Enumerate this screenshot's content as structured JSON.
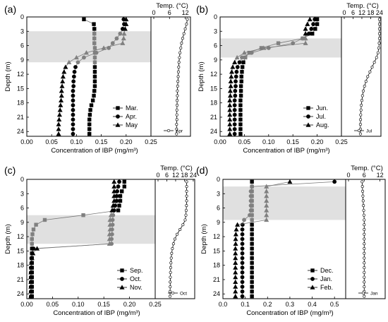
{
  "chart_data": [
    {
      "type": "line",
      "panel_label": "(a)",
      "ylabel": "Depth (m)",
      "xlabel": "Concentration of IBP (mg/m³)",
      "temp_title": "Temp. (°C)",
      "xlim": [
        0.0,
        0.25
      ],
      "xticks": [
        "0.00",
        "0.05",
        "0.10",
        "0.15",
        "0.20",
        "0.25"
      ],
      "temp_xlim": [
        0,
        14
      ],
      "temp_xticks": [
        "0",
        "6",
        "12"
      ],
      "ylim": [
        0,
        25
      ],
      "yticks": [
        "0",
        "3",
        "6",
        "9",
        "12",
        "15",
        "18",
        "21",
        "24"
      ],
      "shade": [
        3,
        9.5
      ],
      "depths": [
        0.5,
        1.5,
        2.5,
        3.5,
        4.5,
        5.5,
        6.5,
        7.5,
        8.5,
        9.5,
        10.5,
        11.5,
        12.5,
        13.5,
        14.5,
        15.5,
        16.5,
        17.5,
        18.5,
        19.5,
        20.5,
        21.5,
        22.5,
        23.5,
        24.5
      ],
      "series": [
        {
          "name": "Mar.",
          "marker": "square",
          "color": "#000000",
          "values": [
            0.115,
            0.135,
            0.136,
            0.136,
            0.136,
            0.136,
            0.137,
            0.137,
            0.137,
            0.137,
            0.137,
            0.137,
            0.137,
            0.137,
            0.137,
            0.136,
            0.135,
            0.133,
            0.13,
            0.128,
            0.127,
            0.126,
            0.126,
            0.126,
            0.126
          ]
        },
        {
          "name": "Apr.",
          "marker": "circle",
          "color": "#000000",
          "values": [
            0.195,
            0.196,
            0.193,
            0.188,
            0.181,
            0.173,
            0.165,
            0.14,
            0.115,
            0.103,
            0.098,
            0.096,
            0.095,
            0.094,
            0.094,
            0.093,
            0.093,
            0.093,
            0.093,
            0.093,
            0.093,
            0.093,
            0.093,
            0.093,
            0.093
          ]
        },
        {
          "name": "May",
          "marker": "triangle",
          "color": "#000000",
          "values": [
            0.2,
            0.2,
            0.198,
            0.196,
            0.195,
            0.193,
            0.155,
            0.12,
            0.1,
            0.085,
            0.078,
            0.075,
            0.073,
            0.072,
            0.071,
            0.07,
            0.07,
            0.069,
            0.068,
            0.067,
            0.066,
            0.065,
            0.064,
            0.064,
            0.064
          ]
        }
      ],
      "temp_label": "Apr",
      "temp": [
        12.8,
        12.5,
        12.0,
        11.5,
        11.0,
        10.6,
        10.3,
        10.0,
        9.8,
        9.6,
        9.5,
        9.4,
        9.3,
        9.2,
        9.1,
        9.0,
        9.0,
        8.9,
        8.9,
        8.8,
        8.8,
        8.8,
        8.7,
        8.7,
        8.7
      ],
      "legend_position": "bottom-right"
    },
    {
      "type": "line",
      "panel_label": "(b)",
      "ylabel": "Depth (m)",
      "xlabel": "Concentration of IBP (mg/m³)",
      "temp_title": "Temp. (°C)",
      "xlim": [
        0.0,
        0.25
      ],
      "xticks": [
        "0.00",
        "0.05",
        "0.10",
        "0.15",
        "0.20",
        "0.25"
      ],
      "temp_xlim": [
        0,
        25
      ],
      "temp_xticks": [
        "0",
        "6",
        "12",
        "18",
        "24"
      ],
      "ylim": [
        0,
        25
      ],
      "yticks": [
        "0",
        "3",
        "6",
        "9",
        "12",
        "15",
        "18",
        "21",
        "24"
      ],
      "shade": [
        4.5,
        8.5
      ],
      "depths": [
        0.5,
        1.5,
        2.5,
        3.5,
        4.5,
        5.5,
        6.5,
        7.5,
        8.5,
        9.5,
        10.5,
        11.5,
        12.5,
        13.5,
        14.5,
        15.5,
        16.5,
        17.5,
        18.5,
        19.5,
        20.5,
        21.5,
        22.5,
        23.5,
        24.5
      ],
      "series": [
        {
          "name": "Jun.",
          "marker": "square",
          "color": "#000000",
          "values": [
            0.2,
            0.2,
            0.196,
            0.19,
            0.17,
            0.12,
            0.085,
            0.06,
            0.052,
            0.048,
            0.046,
            0.045,
            0.044,
            0.044,
            0.043,
            0.043,
            0.043,
            0.042,
            0.042,
            0.042,
            0.042,
            0.042,
            0.042,
            0.042,
            0.042
          ]
        },
        {
          "name": "Jul.",
          "marker": "circle",
          "color": "#000000",
          "values": [
            0.195,
            0.192,
            0.188,
            0.183,
            0.17,
            0.15,
            0.1,
            0.065,
            0.045,
            0.04,
            0.036,
            0.034,
            0.033,
            0.032,
            0.032,
            0.031,
            0.031,
            0.03,
            0.03,
            0.03,
            0.03,
            0.03,
            0.03,
            0.03,
            0.03
          ]
        },
        {
          "name": "Aug.",
          "marker": "triangle",
          "color": "#000000",
          "values": [
            0.185,
            0.18,
            0.176,
            0.176,
            0.176,
            0.176,
            0.09,
            0.05,
            0.035,
            0.03,
            0.026,
            0.024,
            0.023,
            0.022,
            0.022,
            0.021,
            0.021,
            0.02,
            0.02,
            0.02,
            0.02,
            0.02,
            0.02,
            0.02,
            0.02
          ]
        }
      ],
      "temp_label": "Jul",
      "temp": [
        24.0,
        24.0,
        24.0,
        24.0,
        24.0,
        23.8,
        23.5,
        23.0,
        22.0,
        20.5,
        19.0,
        17.5,
        16.0,
        14.8,
        13.8,
        13.0,
        12.4,
        12.0,
        11.6,
        11.4,
        11.2,
        11.1,
        11.0,
        11.0,
        11.0
      ],
      "legend_position": "bottom-right"
    },
    {
      "type": "line",
      "panel_label": "(c)",
      "ylabel": "Depth (m)",
      "xlabel": "Concentration of IBP (mg/m³)",
      "temp_title": "Temp. (°C)",
      "xlim": [
        0.0,
        0.25
      ],
      "xticks": [
        "0.00",
        "0.05",
        "0.10",
        "0.15",
        "0.20",
        "0.25"
      ],
      "temp_xlim": [
        0,
        25
      ],
      "temp_xticks": [
        "0",
        "6",
        "12",
        "18",
        "24"
      ],
      "ylim": [
        0,
        25
      ],
      "yticks": [
        "0",
        "3",
        "6",
        "9",
        "12",
        "15",
        "18",
        "21",
        "24"
      ],
      "shade": [
        7.5,
        13.5
      ],
      "depths": [
        0.5,
        1.5,
        2.5,
        3.5,
        4.5,
        5.5,
        6.5,
        7.5,
        8.5,
        9.5,
        10.5,
        11.5,
        12.5,
        13.5,
        14.5,
        15.5,
        16.5,
        17.5,
        18.5,
        19.5,
        20.5,
        21.5,
        22.5,
        23.5,
        24.5
      ],
      "series": [
        {
          "name": "Sep.",
          "marker": "square",
          "color": "#000000",
          "values": [
            0.19,
            0.19,
            0.185,
            0.182,
            0.182,
            0.18,
            0.178,
            0.11,
            0.035,
            0.018,
            0.013,
            0.011,
            0.01,
            0.01,
            0.01,
            0.01,
            0.01,
            0.01,
            0.01,
            0.01,
            0.01,
            0.01,
            0.01,
            0.01,
            0.01
          ]
        },
        {
          "name": "Oct.",
          "marker": "circle",
          "color": "#000000",
          "values": [
            0.18,
            0.178,
            0.176,
            0.175,
            0.175,
            0.172,
            0.17,
            0.168,
            0.167,
            0.167,
            0.166,
            0.166,
            0.165,
            0.165,
            0.013,
            0.01,
            0.009,
            0.009,
            0.008,
            0.008,
            0.008,
            0.008,
            0.008,
            0.008,
            0.008
          ]
        },
        {
          "name": "Nov.",
          "marker": "triangle",
          "color": "#000000",
          "values": [
            0.17,
            0.17,
            0.17,
            0.17,
            0.17,
            0.168,
            0.166,
            0.164,
            0.162,
            0.162,
            0.162,
            0.161,
            0.161,
            0.161,
            0.02,
            0.012,
            0.01,
            0.009,
            0.009,
            0.008,
            0.008,
            0.008,
            0.008,
            0.008,
            0.008
          ]
        }
      ],
      "temp_label": "Oct",
      "temp": [
        19.5,
        19.5,
        19.5,
        19.5,
        19.5,
        19.4,
        19.2,
        19.0,
        18.5,
        17.0,
        15.0,
        13.0,
        11.5,
        10.5,
        9.8,
        9.3,
        9.0,
        8.8,
        8.6,
        8.5,
        8.4,
        8.3,
        8.3,
        8.2,
        8.2
      ],
      "legend_position": "bottom-right"
    },
    {
      "type": "line",
      "panel_label": "(d)",
      "ylabel": "Depth (m)",
      "xlabel": "Concentration of IBP (mg/m³)",
      "temp_title": "Temp. (°C)",
      "xlim": [
        0.0,
        0.55
      ],
      "xticks": [
        "0.0",
        "0.1",
        "0.2",
        "0.3",
        "0.4",
        "0.5"
      ],
      "temp_xlim": [
        0,
        14
      ],
      "temp_xticks": [
        "0",
        "6",
        "12"
      ],
      "ylim": [
        0,
        25
      ],
      "yticks": [
        "0",
        "3",
        "6",
        "9",
        "12",
        "15",
        "18",
        "21",
        "24"
      ],
      "shade": [
        1.5,
        8.5
      ],
      "depths": [
        0.5,
        1.5,
        2.5,
        3.5,
        4.5,
        5.5,
        6.5,
        7.5,
        8.5,
        9.5,
        10.5,
        11.5,
        12.5,
        13.5,
        14.5,
        15.5,
        16.5,
        17.5,
        18.5,
        19.5,
        20.5,
        21.5,
        22.5,
        23.5,
        24.5
      ],
      "series": [
        {
          "name": "Dec.",
          "marker": "square",
          "color": "#000000",
          "values": [
            0.13,
            0.13,
            0.13,
            0.13,
            0.13,
            0.13,
            0.13,
            0.13,
            0.13,
            0.13,
            0.13,
            0.13,
            0.13,
            0.13,
            0.13,
            0.13,
            0.13,
            0.13,
            0.13,
            0.13,
            0.13,
            0.13,
            0.13,
            0.13,
            0.13
          ]
        },
        {
          "name": "Jan.",
          "marker": "circle",
          "color": "#000000",
          "values": [
            0.5,
            0.13,
            0.125,
            0.125,
            0.125,
            0.125,
            0.125,
            0.12,
            0.095,
            0.088,
            0.087,
            0.087,
            0.087,
            0.087,
            0.087,
            0.087,
            0.087,
            0.087,
            0.087,
            0.087,
            0.087,
            0.087,
            0.087,
            0.087,
            0.087
          ]
        },
        {
          "name": "Feb.",
          "marker": "triangle",
          "color": "#000000",
          "values": [
            0.3,
            0.195,
            0.195,
            0.195,
            0.195,
            0.195,
            0.195,
            0.195,
            0.195,
            0.065,
            0.06,
            0.058,
            0.057,
            0.057,
            0.056,
            0.056,
            0.056,
            0.056,
            0.056,
            0.056,
            0.056,
            0.056,
            0.056,
            0.056,
            0.056
          ]
        }
      ],
      "temp_label": "Jan",
      "temp": [
        5.2,
        5.3,
        5.4,
        5.5,
        5.6,
        5.7,
        5.8,
        5.9,
        6.0,
        6.0,
        6.0,
        6.0,
        6.0,
        6.0,
        6.0,
        6.0,
        6.0,
        6.0,
        6.0,
        6.0,
        6.0,
        6.0,
        6.0,
        6.0,
        6.0
      ],
      "legend_position": "bottom-right"
    }
  ]
}
